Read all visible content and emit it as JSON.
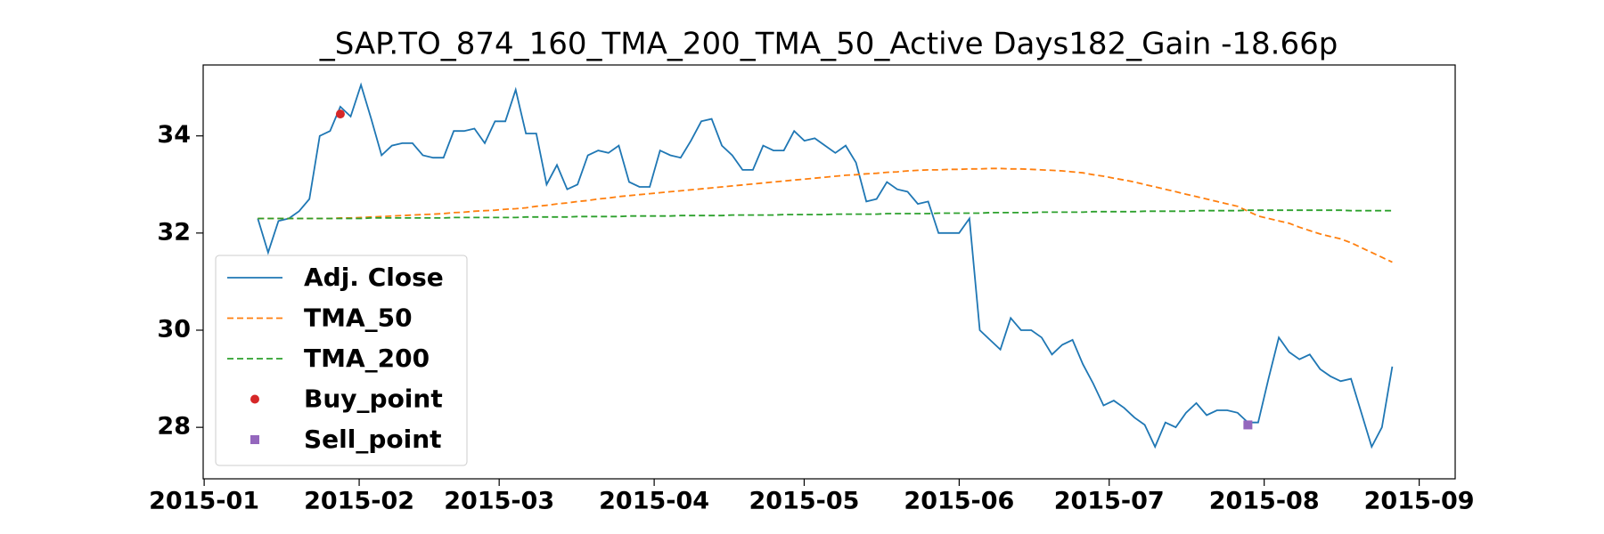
{
  "chart_data": {
    "type": "line",
    "title": "_SAP.TO_874_160_TMA_200_TMA_50_Active Days182_Gain -18.66p",
    "xticks": [
      "2015-01",
      "2015-02",
      "2015-03",
      "2015-04",
      "2015-05",
      "2015-06",
      "2015-07",
      "2015-08",
      "2015-09"
    ],
    "ylim": [
      26.94,
      35.46
    ],
    "yticks": [
      28,
      30,
      32,
      34
    ],
    "legend": "lower left",
    "series": [
      {
        "name": "Adj. Close",
        "color": "#1f77b4",
        "style": "solid",
        "values": [
          32.3,
          31.6,
          32.25,
          32.3,
          32.45,
          32.7,
          34.0,
          34.1,
          34.6,
          34.4,
          35.05,
          34.35,
          33.6,
          33.8,
          33.85,
          33.85,
          33.6,
          33.55,
          33.55,
          34.1,
          34.1,
          34.15,
          33.85,
          34.3,
          34.3,
          34.95,
          34.05,
          34.05,
          33.0,
          33.4,
          32.9,
          33.0,
          33.6,
          33.7,
          33.65,
          33.8,
          33.05,
          32.95,
          32.95,
          33.7,
          33.6,
          33.55,
          33.9,
          34.3,
          34.35,
          33.8,
          33.6,
          33.3,
          33.3,
          33.8,
          33.7,
          33.7,
          34.1,
          33.9,
          33.95,
          33.8,
          33.65,
          33.8,
          33.45,
          32.65,
          32.7,
          33.05,
          32.9,
          32.85,
          32.6,
          32.65,
          32.0,
          32.0,
          32.0,
          32.3,
          30.0,
          29.8,
          29.6,
          30.25,
          30.0,
          30.0,
          29.85,
          29.5,
          29.7,
          29.8,
          29.3,
          28.9,
          28.45,
          28.55,
          28.4,
          28.2,
          28.05,
          27.6,
          28.1,
          28.0,
          28.3,
          28.5,
          28.25,
          28.35,
          28.35,
          28.3,
          28.1,
          28.1,
          29.0,
          29.85,
          29.55,
          29.4,
          29.5,
          29.2,
          29.05,
          28.95,
          29.0,
          28.3,
          27.6,
          28.0,
          29.25
        ]
      },
      {
        "name": "TMA_50",
        "color": "#ff7f0e",
        "style": "dashed",
        "values": [
          32.3,
          32.3,
          32.3,
          32.3,
          32.3,
          32.3,
          32.3,
          32.3,
          32.31,
          32.31,
          32.32,
          32.33,
          32.34,
          32.35,
          32.36,
          32.37,
          32.38,
          32.39,
          32.4,
          32.42,
          32.43,
          32.45,
          32.46,
          32.47,
          32.49,
          32.5,
          32.52,
          32.55,
          32.57,
          32.6,
          32.62,
          32.65,
          32.67,
          32.7,
          32.72,
          32.75,
          32.77,
          32.79,
          32.81,
          32.83,
          32.85,
          32.87,
          32.89,
          32.91,
          32.93,
          32.95,
          32.97,
          32.99,
          33.01,
          33.03,
          33.05,
          33.07,
          33.09,
          33.11,
          33.13,
          33.15,
          33.17,
          33.19,
          33.2,
          33.22,
          33.23,
          33.25,
          33.26,
          33.28,
          33.29,
          33.3,
          33.3,
          33.31,
          33.31,
          33.32,
          33.32,
          33.33,
          33.33,
          33.32,
          33.32,
          33.31,
          33.3,
          33.29,
          33.28,
          33.26,
          33.24,
          33.2,
          33.17,
          33.13,
          33.09,
          33.05,
          33.0,
          32.95,
          32.9,
          32.85,
          32.8,
          32.75,
          32.7,
          32.65,
          32.6,
          32.55,
          32.45,
          32.35,
          32.3,
          32.25,
          32.2,
          32.12,
          32.05,
          31.98,
          31.93,
          31.88,
          31.8,
          31.7,
          31.6,
          31.5,
          31.4
        ]
      },
      {
        "name": "TMA_200",
        "color": "#2ca02c",
        "style": "dashed",
        "values": [
          32.3,
          32.3,
          32.3,
          32.3,
          32.3,
          32.3,
          32.3,
          32.3,
          32.3,
          32.3,
          32.3,
          32.31,
          32.31,
          32.31,
          32.31,
          32.31,
          32.31,
          32.31,
          32.31,
          32.32,
          32.32,
          32.32,
          32.32,
          32.32,
          32.32,
          32.32,
          32.33,
          32.33,
          32.33,
          32.33,
          32.33,
          32.34,
          32.34,
          32.34,
          32.34,
          32.34,
          32.35,
          32.35,
          32.35,
          32.35,
          32.35,
          32.36,
          32.36,
          32.36,
          32.36,
          32.36,
          32.37,
          32.37,
          32.37,
          32.37,
          32.37,
          32.38,
          32.38,
          32.38,
          32.38,
          32.38,
          32.39,
          32.39,
          32.39,
          32.39,
          32.39,
          32.4,
          32.4,
          32.4,
          32.4,
          32.4,
          32.41,
          32.41,
          32.41,
          32.41,
          32.41,
          32.42,
          32.42,
          32.42,
          32.42,
          32.42,
          32.43,
          32.43,
          32.43,
          32.43,
          32.43,
          32.44,
          32.44,
          32.44,
          32.44,
          32.44,
          32.45,
          32.45,
          32.45,
          32.45,
          32.45,
          32.46,
          32.46,
          32.46,
          32.46,
          32.46,
          32.47,
          32.47,
          32.47,
          32.47,
          32.47,
          32.47,
          32.47,
          32.47,
          32.47,
          32.47,
          32.46,
          32.46,
          32.46,
          32.46,
          32.46
        ]
      },
      {
        "name": "Buy_point",
        "color": "#d62728",
        "style": "marker-circle",
        "values": [
          null,
          null,
          null,
          null,
          null,
          null,
          null,
          null,
          34.45,
          null,
          null,
          null,
          null,
          null,
          null,
          null,
          null,
          null,
          null,
          null,
          null,
          null,
          null,
          null,
          null,
          null,
          null,
          null,
          null,
          null,
          null,
          null,
          null,
          null,
          null,
          null,
          null,
          null,
          null,
          null,
          null,
          null,
          null,
          null,
          null,
          null,
          null,
          null,
          null,
          null,
          null,
          null,
          null,
          null,
          null,
          null,
          null,
          null,
          null,
          null,
          null,
          null,
          null,
          null,
          null,
          null,
          null,
          null,
          null,
          null,
          null,
          null,
          null,
          null,
          null,
          null,
          null,
          null,
          null,
          null,
          null,
          null,
          null,
          null,
          null,
          null,
          null,
          null,
          null,
          null,
          null,
          null,
          null,
          null,
          null,
          null,
          null,
          null,
          null,
          null,
          null,
          null,
          null,
          null,
          null,
          null,
          null,
          null,
          null,
          null,
          null
        ]
      },
      {
        "name": "Sell_point",
        "color": "#9467bd",
        "style": "marker-square",
        "values": [
          null,
          null,
          null,
          null,
          null,
          null,
          null,
          null,
          null,
          null,
          null,
          null,
          null,
          null,
          null,
          null,
          null,
          null,
          null,
          null,
          null,
          null,
          null,
          null,
          null,
          null,
          null,
          null,
          null,
          null,
          null,
          null,
          null,
          null,
          null,
          null,
          null,
          null,
          null,
          null,
          null,
          null,
          null,
          null,
          null,
          null,
          null,
          null,
          null,
          null,
          null,
          null,
          null,
          null,
          null,
          null,
          null,
          null,
          null,
          null,
          null,
          null,
          null,
          null,
          null,
          null,
          null,
          null,
          null,
          null,
          null,
          null,
          null,
          null,
          null,
          null,
          null,
          null,
          null,
          null,
          null,
          null,
          null,
          null,
          null,
          null,
          null,
          null,
          null,
          null,
          null,
          null,
          null,
          null,
          null,
          null,
          28.05,
          null,
          null,
          null,
          null,
          null,
          null,
          null,
          null,
          null,
          null,
          null,
          null,
          null,
          null
        ]
      }
    ]
  }
}
